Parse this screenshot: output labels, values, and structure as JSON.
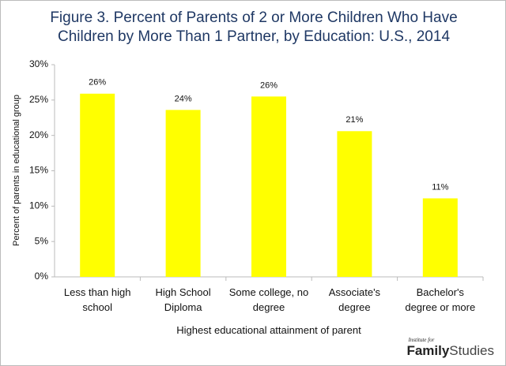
{
  "chart_data": {
    "type": "bar",
    "title": "Figure 3. Percent of Parents of 2 or More Children Who Have Children by More Than 1 Partner, by Education: U.S., 2014",
    "x_label": "Highest educational attainment of parent",
    "y_label": "Percent of parents in educational group",
    "categories": [
      "Less than high school",
      "High School Diploma",
      "Some college, no degree",
      "Associate's degree",
      "Bachelor's degree or more"
    ],
    "values": [
      25.9,
      23.6,
      25.5,
      20.6,
      11.1
    ],
    "value_labels": [
      "26%",
      "24%",
      "26%",
      "21%",
      "11%"
    ],
    "color": "#ffff00",
    "ylim": [
      0,
      30
    ],
    "yticks": [
      {
        "value": 0,
        "label": "0%"
      },
      {
        "value": 5,
        "label": "5%"
      },
      {
        "value": 10,
        "label": "10%"
      },
      {
        "value": 15,
        "label": "15%"
      },
      {
        "value": 20,
        "label": "20%"
      },
      {
        "value": 25,
        "label": "25%"
      },
      {
        "value": 30,
        "label": "30%"
      }
    ],
    "grid": false
  },
  "branding": {
    "small": "Institute for",
    "bold": "Family",
    "light": "Studies"
  }
}
